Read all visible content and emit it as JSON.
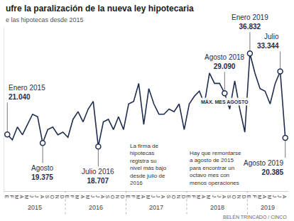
{
  "chart_data": {
    "type": "line",
    "title": "ufre la paralización de la nueva ley hipotecaria",
    "subtitle": "e las hipotecas desde 2015",
    "color": "#1f2d4e",
    "categories": [
      "E",
      "F",
      "M",
      "A",
      "M",
      "J",
      "J",
      "A",
      "S",
      "O",
      "N",
      "D",
      "E",
      "F",
      "M",
      "A",
      "M",
      "J",
      "J",
      "A",
      "S",
      "O",
      "N",
      "D",
      "E",
      "F",
      "M",
      "A",
      "M",
      "J",
      "J",
      "A",
      "S",
      "O",
      "N",
      "D",
      "E",
      "F",
      "M",
      "A",
      "M",
      "J",
      "J",
      "A",
      "S",
      "O",
      "N",
      "D",
      "E",
      "F",
      "M",
      "A",
      "M",
      "J",
      "J",
      "A"
    ],
    "years": [
      "2015",
      "2016",
      "2017",
      "2018",
      "2019"
    ],
    "values": [
      21040,
      20000,
      22500,
      21000,
      23000,
      25000,
      24500,
      19375,
      22000,
      22500,
      21000,
      21500,
      20500,
      24000,
      25500,
      23500,
      26000,
      27500,
      18707,
      23500,
      24000,
      22000,
      24500,
      22000,
      27000,
      27500,
      31000,
      23000,
      30000,
      27000,
      25000,
      25000,
      26000,
      25500,
      27000,
      22000,
      27000,
      28500,
      29500,
      27000,
      33000,
      31000,
      31000,
      29090,
      26000,
      31500,
      26000,
      21500,
      36832,
      33000,
      30000,
      29500,
      27000,
      31000,
      33344,
      20385
    ],
    "ylim": [
      10000,
      42000
    ],
    "tick_labels": "x",
    "grid": false,
    "annotations": [
      {
        "index": 0,
        "title": "Enero 2015",
        "value": 21040,
        "label": "21.040"
      },
      {
        "index": 7,
        "title": "Agosto",
        "value": 19375,
        "label": "19.375"
      },
      {
        "index": 18,
        "title": "Julio 2016",
        "value": 18707,
        "label": "18.707"
      },
      {
        "index": 43,
        "title": "Agosto 2018",
        "value": 29090,
        "label": "29.090",
        "note": "MÁX. MES AGOSTO"
      },
      {
        "index": 48,
        "title": "Enero 2019",
        "value": 36832,
        "label": "36.832"
      },
      {
        "index": 54,
        "title": "Julio",
        "value": 33344,
        "label": "33.344"
      },
      {
        "index": 55,
        "title": "Agosto 2019",
        "value": 20385,
        "label": "20.385"
      }
    ],
    "notes": [
      "La firma de hipotecas registra su nivel más bajo desde julio de 2016",
      "Hay que remontarse a agosto de 2015 para encontrar un octavo mes con menos operaciones"
    ],
    "credit": "BELÉN TRINCADO / CINCO"
  }
}
